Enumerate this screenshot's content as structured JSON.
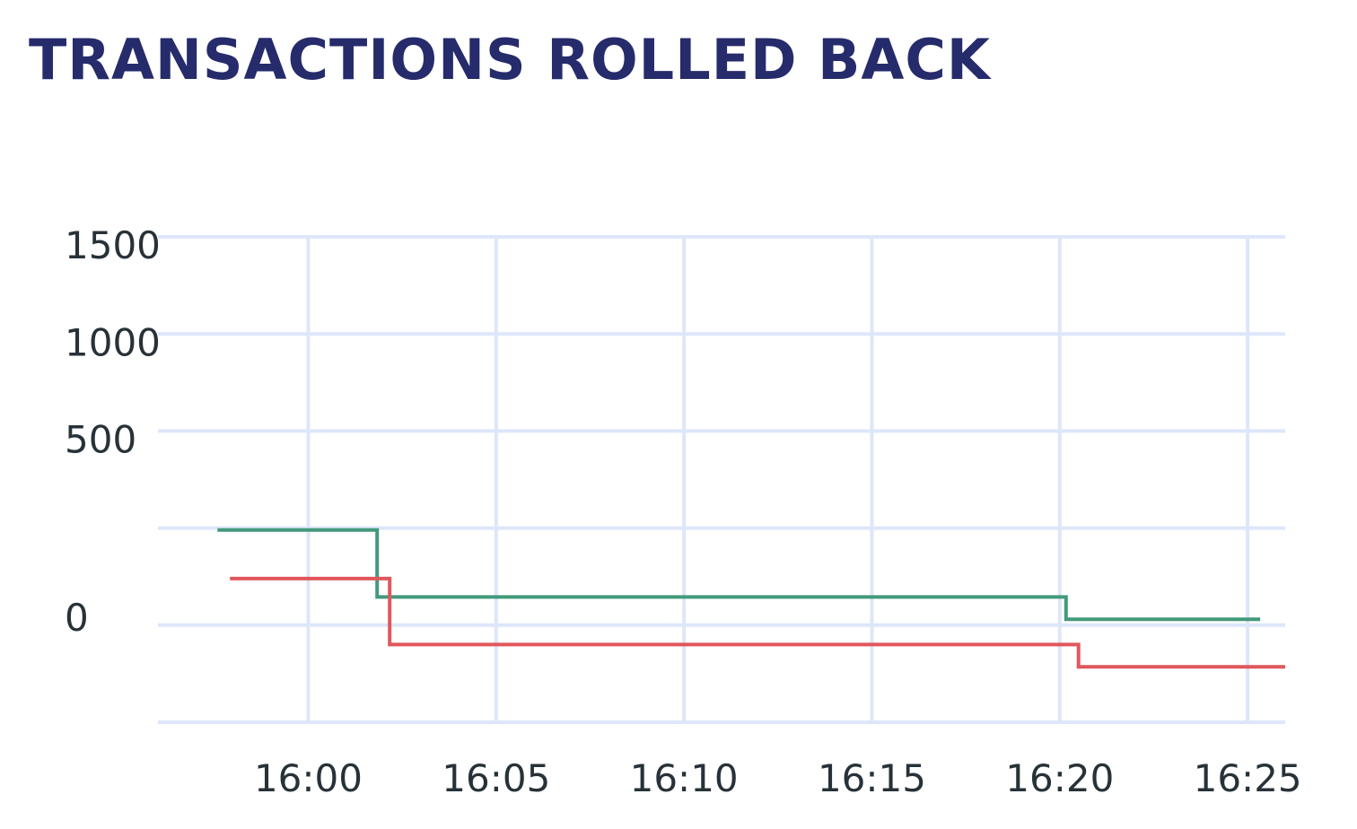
{
  "card": {
    "title": "TRANSACTIONS ROLLED BACK"
  },
  "colors": {
    "title": "#262b6b",
    "grid": "#dde6fa",
    "tick_text": "#273238",
    "series_green": "#429a7a",
    "series_red": "#e0575c"
  },
  "chart_data": {
    "type": "line",
    "step": true,
    "title": "TRANSACTIONS ROLLED BACK",
    "xlabel": "",
    "ylabel": "",
    "ylim": [
      -500,
      2000
    ],
    "xlim": [
      "15:56",
      "16:26"
    ],
    "y_ticks": [
      "0",
      "500",
      "1000",
      "1500"
    ],
    "x_ticks": [
      "16:00",
      "16:05",
      "16:10",
      "16:15",
      "16:20",
      "16:25"
    ],
    "grid": true,
    "legend": "none",
    "series": [
      {
        "color": "#429a7a",
        "points": [
          [
            "15:57:35",
            490
          ],
          [
            "16:01:50",
            490
          ],
          [
            "16:01:50",
            145
          ],
          [
            "16:20:10",
            145
          ],
          [
            "16:20:10",
            30
          ],
          [
            "16:25:20",
            30
          ]
        ]
      },
      {
        "color": "#e0575c",
        "points": [
          [
            "15:57:55",
            240
          ],
          [
            "16:02:10",
            240
          ],
          [
            "16:02:10",
            -100
          ],
          [
            "16:20:30",
            -100
          ],
          [
            "16:20:30",
            -215
          ],
          [
            "16:26:00",
            -215
          ]
        ]
      }
    ]
  }
}
